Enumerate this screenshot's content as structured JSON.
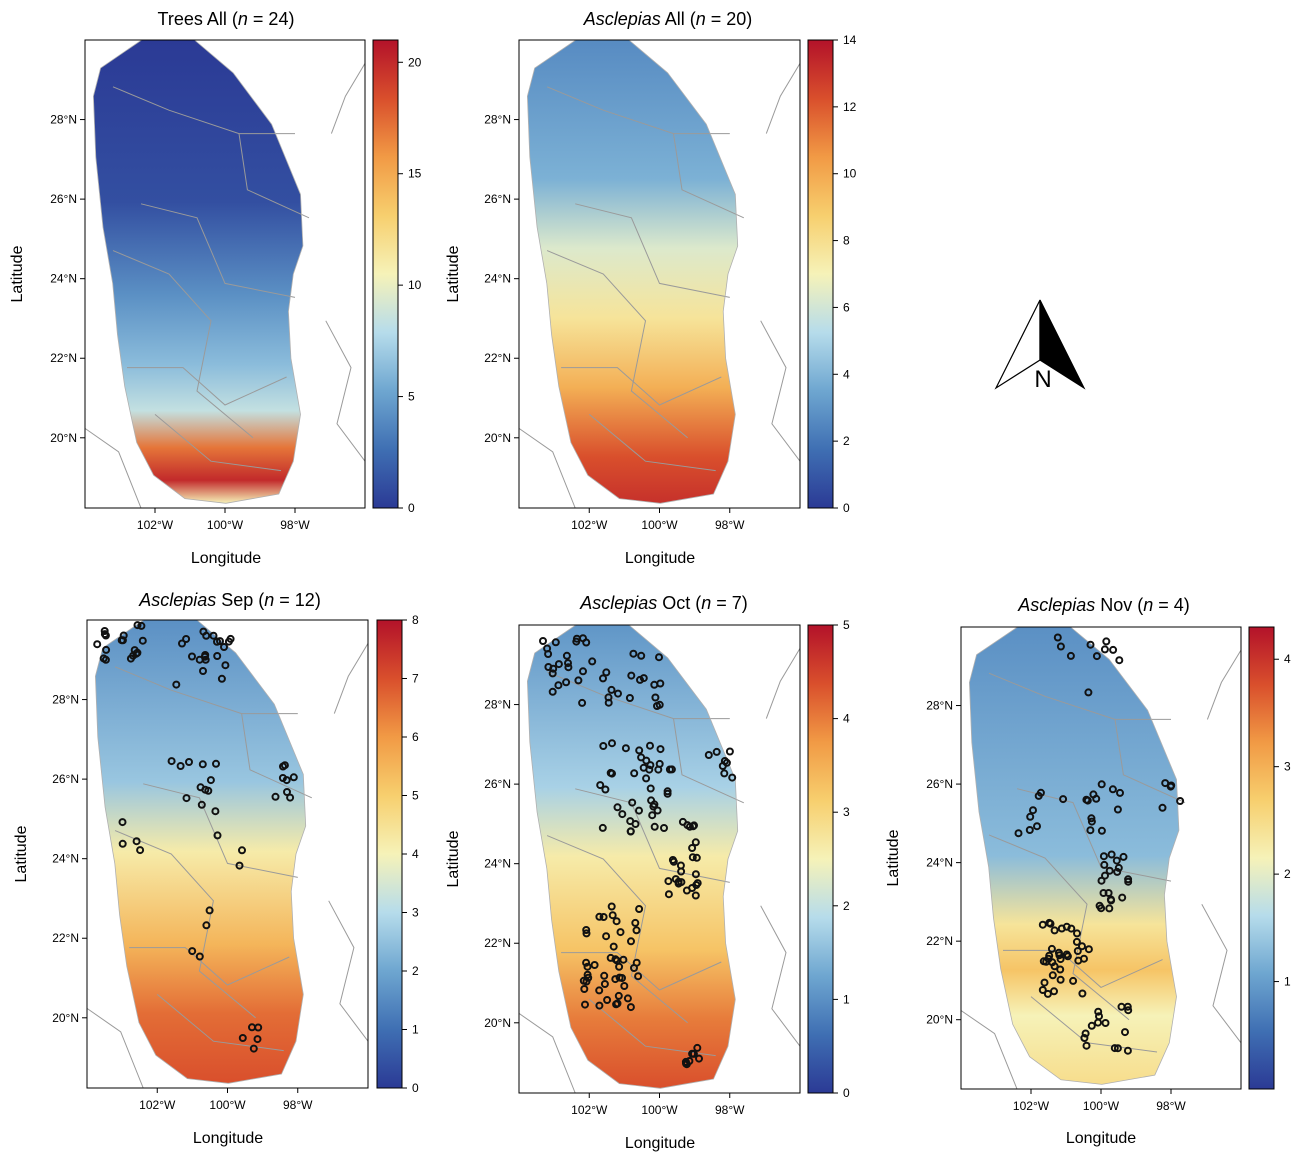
{
  "panels": [
    {
      "id": "trees-all",
      "title_pre": "",
      "title_italic": "",
      "title_mid": "Trees All (",
      "n_label": "n",
      "title_post": " = 24)",
      "title_full": "Trees All (n = 24)",
      "scale_max": 21,
      "ticks": [
        "0",
        "5",
        "10",
        "15",
        "20"
      ],
      "tick_values": [
        0,
        5,
        10,
        15,
        20
      ],
      "xlabel": "Longitude",
      "ylabel": "Latitude",
      "lat_ticks": [
        "28°N",
        "26°N",
        "24°N",
        "22°N",
        "20°N"
      ],
      "lon_ticks": [
        "102°W",
        "100°W",
        "98°W"
      ],
      "has_points": false
    },
    {
      "id": "asclepias-all",
      "title_italic": "Asclepias",
      "title_mid": " All (",
      "n_label": "n",
      "title_post": " = 20)",
      "scale_max": 14,
      "ticks": [
        "0",
        "2",
        "4",
        "6",
        "8",
        "10",
        "12",
        "14"
      ],
      "tick_values": [
        0,
        2,
        4,
        6,
        8,
        10,
        12,
        14
      ],
      "xlabel": "Longitude",
      "ylabel": "Latitude",
      "lat_ticks": [
        "28°N",
        "26°N",
        "24°N",
        "22°N",
        "20°N"
      ],
      "lon_ticks": [
        "102°W",
        "100°W",
        "98°W"
      ],
      "has_points": false
    },
    {
      "id": "asclepias-sep",
      "title_italic": "Asclepias",
      "title_mid": " Sep (",
      "n_label": "n",
      "title_post": " = 12)",
      "scale_max": 8,
      "ticks": [
        "0",
        "1",
        "2",
        "3",
        "4",
        "5",
        "6",
        "7",
        "8"
      ],
      "tick_values": [
        0,
        1,
        2,
        3,
        4,
        5,
        6,
        7,
        8
      ],
      "xlabel": "Longitude",
      "ylabel": "Latitude",
      "lat_ticks": [
        "28°N",
        "26°N",
        "24°N",
        "22°N",
        "20°N"
      ],
      "lon_ticks": [
        "102°W",
        "100°W",
        "98°W"
      ],
      "has_points": true
    },
    {
      "id": "asclepias-oct",
      "title_italic": "Asclepias",
      "title_mid": " Oct (",
      "n_label": "n",
      "title_post": " = 7)",
      "scale_max": 5,
      "ticks": [
        "0",
        "1",
        "2",
        "3",
        "4",
        "5"
      ],
      "tick_values": [
        0,
        1,
        2,
        3,
        4,
        5
      ],
      "xlabel": "Longitude",
      "ylabel": "Latitude",
      "lat_ticks": [
        "28°N",
        "26°N",
        "24°N",
        "22°N",
        "20°N"
      ],
      "lon_ticks": [
        "102°W",
        "100°W",
        "98°W"
      ],
      "has_points": true
    },
    {
      "id": "asclepias-nov",
      "title_italic": "Asclepias",
      "title_mid": " Nov (",
      "n_label": "n",
      "title_post": " = 4)",
      "scale_max": 4.3,
      "ticks": [
        "1",
        "2",
        "3",
        "4"
      ],
      "tick_values": [
        1,
        2,
        3,
        4
      ],
      "xlabel": "Longitude",
      "ylabel": "Latitude",
      "lat_ticks": [
        "28°N",
        "26°N",
        "24°N",
        "22°N",
        "20°N"
      ],
      "lon_ticks": [
        "102°W",
        "100°W",
        "98°W"
      ],
      "has_points": true
    }
  ],
  "north_arrow": {
    "label": "N",
    "icon": "north-arrow-icon"
  },
  "colors": {
    "ramp": [
      "#2b3a95",
      "#3f6fb3",
      "#6ea6d0",
      "#b6dceb",
      "#f6f2b8",
      "#f7cf6e",
      "#f19a45",
      "#d94f2c",
      "#b3122a"
    ],
    "boundary": "#9a9a9a",
    "point_stroke": "#111111"
  }
}
